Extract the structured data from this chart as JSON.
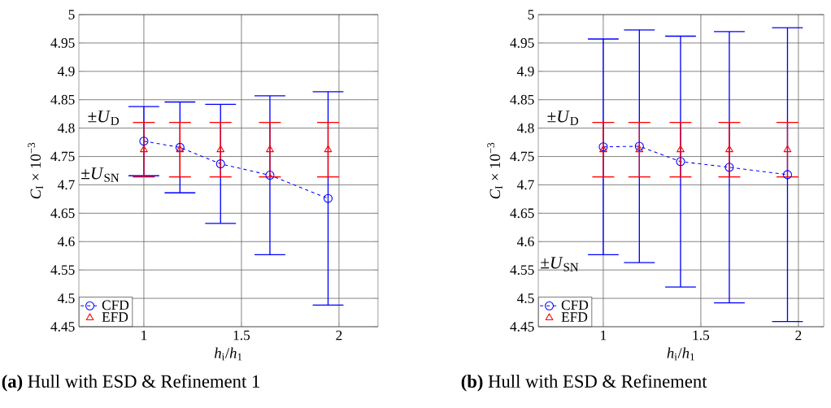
{
  "chart_data": [
    {
      "type": "line",
      "title": "**(a)**  Hull with ESD & Refinement 1",
      "xlabel": "*h*$_{i}$/*h*$_{1}$",
      "ylabel": "*C*$_{I}$ × 10$^{−3}$",
      "xlim": [
        0.667,
        2.2
      ],
      "ylim": [
        4.45,
        5
      ],
      "xticks": [
        1,
        1.5,
        2
      ],
      "yticks": [
        4.45,
        4.5,
        4.55,
        4.6,
        4.65,
        4.7,
        4.75,
        4.8,
        4.85,
        4.9,
        4.95,
        5
      ],
      "grid": true,
      "legend": "bottom left",
      "series": [
        {
          "name": "CFD",
          "color": "#0000ff",
          "marker": "circle",
          "line_style": "dashed",
          "x": [
            1,
            1.185,
            1.393,
            1.646,
            1.944
          ],
          "values": [
            4.777,
            4.766,
            4.737,
            4.717,
            4.676
          ],
          "errors": [
            0.061,
            0.08,
            0.105,
            0.14,
            0.188
          ]
        },
        {
          "name": "EFD",
          "type": "scatter",
          "color": "#ff0000",
          "marker": "triangle",
          "x": [
            1,
            1.185,
            1.393,
            1.646,
            1.944
          ],
          "values": [
            4.762,
            4.762,
            4.762,
            4.762,
            4.762
          ],
          "errors": [
            0.048,
            0.048,
            0.048,
            0.048,
            0.048
          ]
        }
      ],
      "annotations": [
        "±*U*$_{D}$",
        "±*U*$_{SN}$"
      ]
    },
    {
      "type": "line",
      "title": "**(b)**  Hull with ESD & Refinement",
      "xlabel": "*h*$_{i}$/*h*$_{1}$",
      "ylabel": "*C*$_{I}$ × 10$^{−3}$",
      "xlim": [
        0.667,
        2.13
      ],
      "ylim": [
        4.45,
        5
      ],
      "xticks": [
        1,
        1.5,
        2
      ],
      "yticks": [
        4.45,
        4.5,
        4.55,
        4.6,
        4.65,
        4.7,
        4.75,
        4.8,
        4.85,
        4.9,
        4.95,
        5
      ],
      "grid": true,
      "legend": "bottom left",
      "series": [
        {
          "name": "CFD",
          "color": "#0000ff",
          "marker": "circle",
          "line_style": "dashed",
          "x": [
            1,
            1.185,
            1.396,
            1.646,
            1.944
          ],
          "values": [
            4.767,
            4.768,
            4.741,
            4.731,
            4.718
          ],
          "errors": [
            0.19,
            0.205,
            0.221,
            0.239,
            0.259
          ]
        },
        {
          "name": "EFD",
          "type": "scatter",
          "color": "#ff0000",
          "marker": "triangle",
          "x": [
            1,
            1.185,
            1.396,
            1.646,
            1.944
          ],
          "values": [
            4.762,
            4.762,
            4.762,
            4.762,
            4.762
          ],
          "errors": [
            0.048,
            0.048,
            0.048,
            0.048,
            0.048
          ]
        }
      ],
      "annotations": [
        "±*U*$_{D}$",
        "±*U*$_{SN}$"
      ]
    }
  ]
}
